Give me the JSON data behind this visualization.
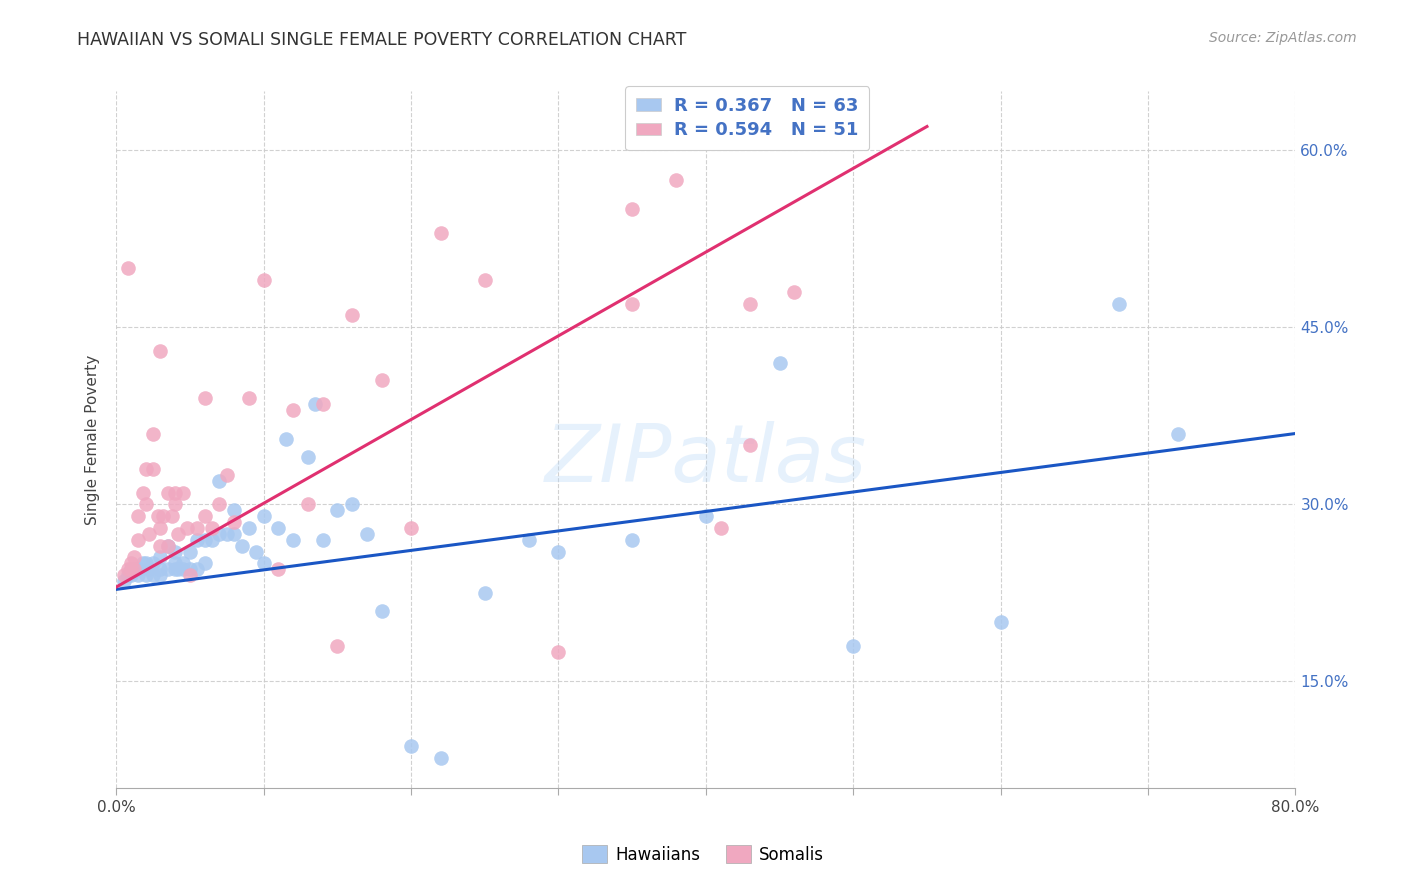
{
  "title": "HAWAIIAN VS SOMALI SINGLE FEMALE POVERTY CORRELATION CHART",
  "source": "Source: ZipAtlas.com",
  "ylabel": "Single Female Poverty",
  "xlim": [
    0.0,
    0.8
  ],
  "ylim": [
    0.06,
    0.65
  ],
  "xtick_positions": [
    0.0,
    0.1,
    0.2,
    0.3,
    0.4,
    0.5,
    0.6,
    0.7,
    0.8
  ],
  "xticklabels": [
    "0.0%",
    "",
    "",
    "",
    "",
    "",
    "",
    "",
    "80.0%"
  ],
  "ytick_positions": [
    0.15,
    0.3,
    0.45,
    0.6
  ],
  "yticklabels": [
    "15.0%",
    "30.0%",
    "45.0%",
    "60.0%"
  ],
  "hawaiians_R": 0.367,
  "hawaiians_N": 63,
  "somalis_R": 0.594,
  "somalis_N": 51,
  "color_hawaiians": "#a8c8f0",
  "color_somalis": "#f0a8c0",
  "line_color_hawaiians": "#1a56c4",
  "line_color_somalis": "#e03070",
  "watermark": "ZIPatlas",
  "hawaiians_x": [
    0.005,
    0.008,
    0.01,
    0.01,
    0.012,
    0.015,
    0.015,
    0.018,
    0.02,
    0.02,
    0.022,
    0.025,
    0.025,
    0.03,
    0.03,
    0.03,
    0.035,
    0.035,
    0.04,
    0.04,
    0.04,
    0.042,
    0.045,
    0.045,
    0.05,
    0.05,
    0.055,
    0.055,
    0.06,
    0.06,
    0.065,
    0.07,
    0.07,
    0.075,
    0.08,
    0.08,
    0.085,
    0.09,
    0.095,
    0.1,
    0.1,
    0.11,
    0.115,
    0.12,
    0.13,
    0.135,
    0.14,
    0.15,
    0.16,
    0.17,
    0.18,
    0.2,
    0.22,
    0.25,
    0.28,
    0.3,
    0.35,
    0.4,
    0.45,
    0.5,
    0.6,
    0.68,
    0.72
  ],
  "hawaiians_y": [
    0.235,
    0.24,
    0.24,
    0.245,
    0.245,
    0.24,
    0.245,
    0.25,
    0.24,
    0.25,
    0.245,
    0.24,
    0.25,
    0.24,
    0.245,
    0.255,
    0.265,
    0.245,
    0.245,
    0.25,
    0.26,
    0.245,
    0.245,
    0.25,
    0.245,
    0.26,
    0.245,
    0.27,
    0.25,
    0.27,
    0.27,
    0.275,
    0.32,
    0.275,
    0.275,
    0.295,
    0.265,
    0.28,
    0.26,
    0.25,
    0.29,
    0.28,
    0.355,
    0.27,
    0.34,
    0.385,
    0.27,
    0.295,
    0.3,
    0.275,
    0.21,
    0.095,
    0.085,
    0.225,
    0.27,
    0.26,
    0.27,
    0.29,
    0.42,
    0.18,
    0.2,
    0.47,
    0.36
  ],
  "somalis_x": [
    0.005,
    0.008,
    0.01,
    0.01,
    0.012,
    0.012,
    0.015,
    0.015,
    0.018,
    0.02,
    0.02,
    0.022,
    0.025,
    0.025,
    0.028,
    0.03,
    0.03,
    0.032,
    0.035,
    0.035,
    0.038,
    0.04,
    0.04,
    0.042,
    0.045,
    0.048,
    0.05,
    0.055,
    0.06,
    0.065,
    0.07,
    0.075,
    0.08,
    0.09,
    0.1,
    0.11,
    0.12,
    0.13,
    0.14,
    0.15,
    0.16,
    0.18,
    0.2,
    0.22,
    0.25,
    0.3,
    0.35,
    0.38,
    0.41,
    0.43,
    0.46
  ],
  "somalis_y": [
    0.24,
    0.245,
    0.245,
    0.25,
    0.255,
    0.245,
    0.27,
    0.29,
    0.31,
    0.3,
    0.33,
    0.275,
    0.33,
    0.36,
    0.29,
    0.265,
    0.28,
    0.29,
    0.265,
    0.31,
    0.29,
    0.31,
    0.3,
    0.275,
    0.31,
    0.28,
    0.24,
    0.28,
    0.29,
    0.28,
    0.3,
    0.325,
    0.285,
    0.39,
    0.49,
    0.245,
    0.38,
    0.3,
    0.385,
    0.18,
    0.46,
    0.405,
    0.28,
    0.53,
    0.49,
    0.175,
    0.55,
    0.575,
    0.28,
    0.35,
    0.48
  ],
  "somalis_extra_high": [
    [
      0.008,
      0.5
    ],
    [
      0.03,
      0.43
    ],
    [
      0.06,
      0.39
    ],
    [
      0.35,
      0.47
    ],
    [
      0.43,
      0.47
    ]
  ],
  "line_hawaiians_x0": 0.0,
  "line_hawaiians_y0": 0.228,
  "line_hawaiians_x1": 0.8,
  "line_hawaiians_y1": 0.36,
  "line_somalis_x0": 0.0,
  "line_somalis_y0": 0.23,
  "line_somalis_x1": 0.55,
  "line_somalis_y1": 0.62
}
